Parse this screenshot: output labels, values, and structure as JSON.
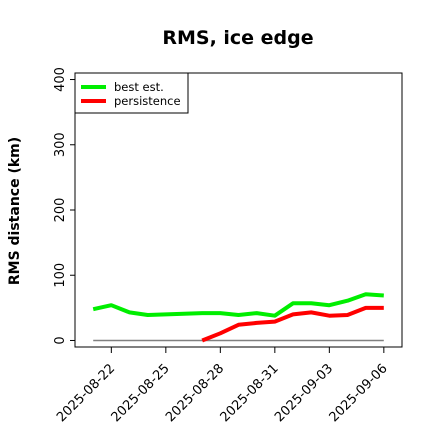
{
  "chart_data": {
    "type": "line",
    "title": "RMS, ice edge",
    "xlabel": "",
    "ylabel": "RMS distance (km)",
    "x_ticks": [
      "2025-08-22",
      "2025-08-25",
      "2025-08-28",
      "2025-08-31",
      "2025-09-03",
      "2025-09-06"
    ],
    "y_ticks": [
      "0",
      "100",
      "200",
      "300",
      "400"
    ],
    "xlim": [
      "2025-08-20",
      "2025-09-07"
    ],
    "ylim": [
      -10,
      410
    ],
    "grid": false,
    "legend_position": "top-left",
    "series": [
      {
        "name": "best est.",
        "color": "#00ee00",
        "x": [
          "2025-08-21",
          "2025-08-22",
          "2025-08-23",
          "2025-08-24",
          "2025-08-25",
          "2025-08-26",
          "2025-08-27",
          "2025-08-28",
          "2025-08-29",
          "2025-08-30",
          "2025-08-31",
          "2025-09-01",
          "2025-09-02",
          "2025-09-03",
          "2025-09-04",
          "2025-09-05",
          "2025-09-06"
        ],
        "values": [
          48,
          54,
          43,
          39,
          40,
          41,
          42,
          42,
          39,
          42,
          38,
          57,
          57,
          54,
          61,
          71,
          69
        ]
      },
      {
        "name": "persistence",
        "color": "#ff0000",
        "x": [
          "2025-08-27",
          "2025-08-28",
          "2025-08-29",
          "2025-08-30",
          "2025-08-31",
          "2025-09-01",
          "2025-09-02",
          "2025-09-03",
          "2025-09-04",
          "2025-09-05",
          "2025-09-06"
        ],
        "values": [
          0,
          11,
          24,
          27,
          29,
          40,
          43,
          38,
          39,
          50,
          50
        ]
      },
      {
        "name": "",
        "color": "#808080",
        "x": [
          "2025-08-21",
          "2025-09-06"
        ],
        "values": [
          0,
          0
        ]
      }
    ]
  }
}
